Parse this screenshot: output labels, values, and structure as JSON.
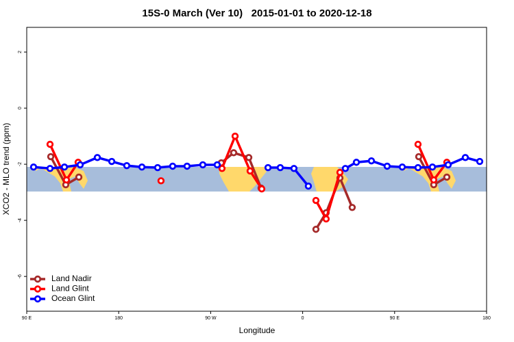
{
  "chart_data": {
    "type": "line",
    "title": "15S-0 March (Ver 10)   2015-01-01 to 2020-12-18",
    "x_label": "Longitude",
    "y_label": "XCO2 - MLO trend (ppm)",
    "xlim": [
      90,
      540
    ],
    "ylim": [
      -7.24,
      2.88
    ],
    "xticks": [
      {
        "value": 90,
        "label": "90 E"
      },
      {
        "value": 180,
        "label": "180"
      },
      {
        "value": 270,
        "label": "90 W"
      },
      {
        "value": 360,
        "label": "0"
      },
      {
        "value": 450,
        "label": "90 E"
      },
      {
        "value": 540,
        "label": "180"
      }
    ],
    "yticks": [
      -6,
      -4,
      -2,
      0,
      2
    ],
    "legend": "bottom-left",
    "series": [
      {
        "name": "Land Nadir",
        "color": "#a52a2a",
        "x": [
          113.5,
          128.2,
          141.0,
          null,
          280.4,
          292.5,
          307.3,
          319.3,
          null,
          373.0,
          383.0,
          396.5,
          408.5,
          null,
          473.6,
          488.3,
          501.1
        ],
        "values": [
          -1.73,
          -2.73,
          -2.46,
          null,
          -1.95,
          -1.59,
          -1.76,
          -2.85,
          null,
          -4.32,
          -3.73,
          -2.49,
          -3.54,
          null,
          -1.73,
          -2.73,
          -2.46
        ]
      },
      {
        "name": "Land Glint",
        "color": "#ff0000",
        "x": [
          112.8,
          128.9,
          140.3,
          null,
          221.4,
          null,
          281.1,
          293.9,
          308.6,
          320.0,
          null,
          373.0,
          383.0,
          396.5,
          null,
          472.9,
          488.3,
          501.1
        ],
        "values": [
          -1.29,
          -2.56,
          -1.93,
          null,
          -2.59,
          null,
          -2.15,
          -1.0,
          -2.24,
          -2.88,
          null,
          -3.29,
          -3.95,
          -2.29,
          null,
          -1.29,
          -2.56,
          -1.93
        ]
      },
      {
        "name": "Ocean Glint",
        "color": "#0000ff",
        "x": [
          96.7,
          112.8,
          126.9,
          142.3,
          159.1,
          173.2,
          187.9,
          202.7,
          218.1,
          232.8,
          246.9,
          262.3,
          276.4,
          null,
          326.1,
          338.1,
          351.5,
          365.6,
          null,
          401.8,
          412.6,
          427.3,
          442.7,
          457.5,
          472.9,
          487.0,
          502.4,
          519.2,
          533.3
        ],
        "values": [
          -2.1,
          -2.15,
          -2.1,
          -2.02,
          -1.76,
          -1.9,
          -2.05,
          -2.1,
          -2.12,
          -2.07,
          -2.07,
          -2.02,
          -2.02,
          null,
          -2.12,
          -2.12,
          -2.15,
          -2.78,
          null,
          -2.15,
          -1.93,
          -1.88,
          -2.07,
          -2.1,
          -2.12,
          -2.1,
          -2.02,
          -1.76,
          -1.9
        ]
      }
    ]
  }
}
